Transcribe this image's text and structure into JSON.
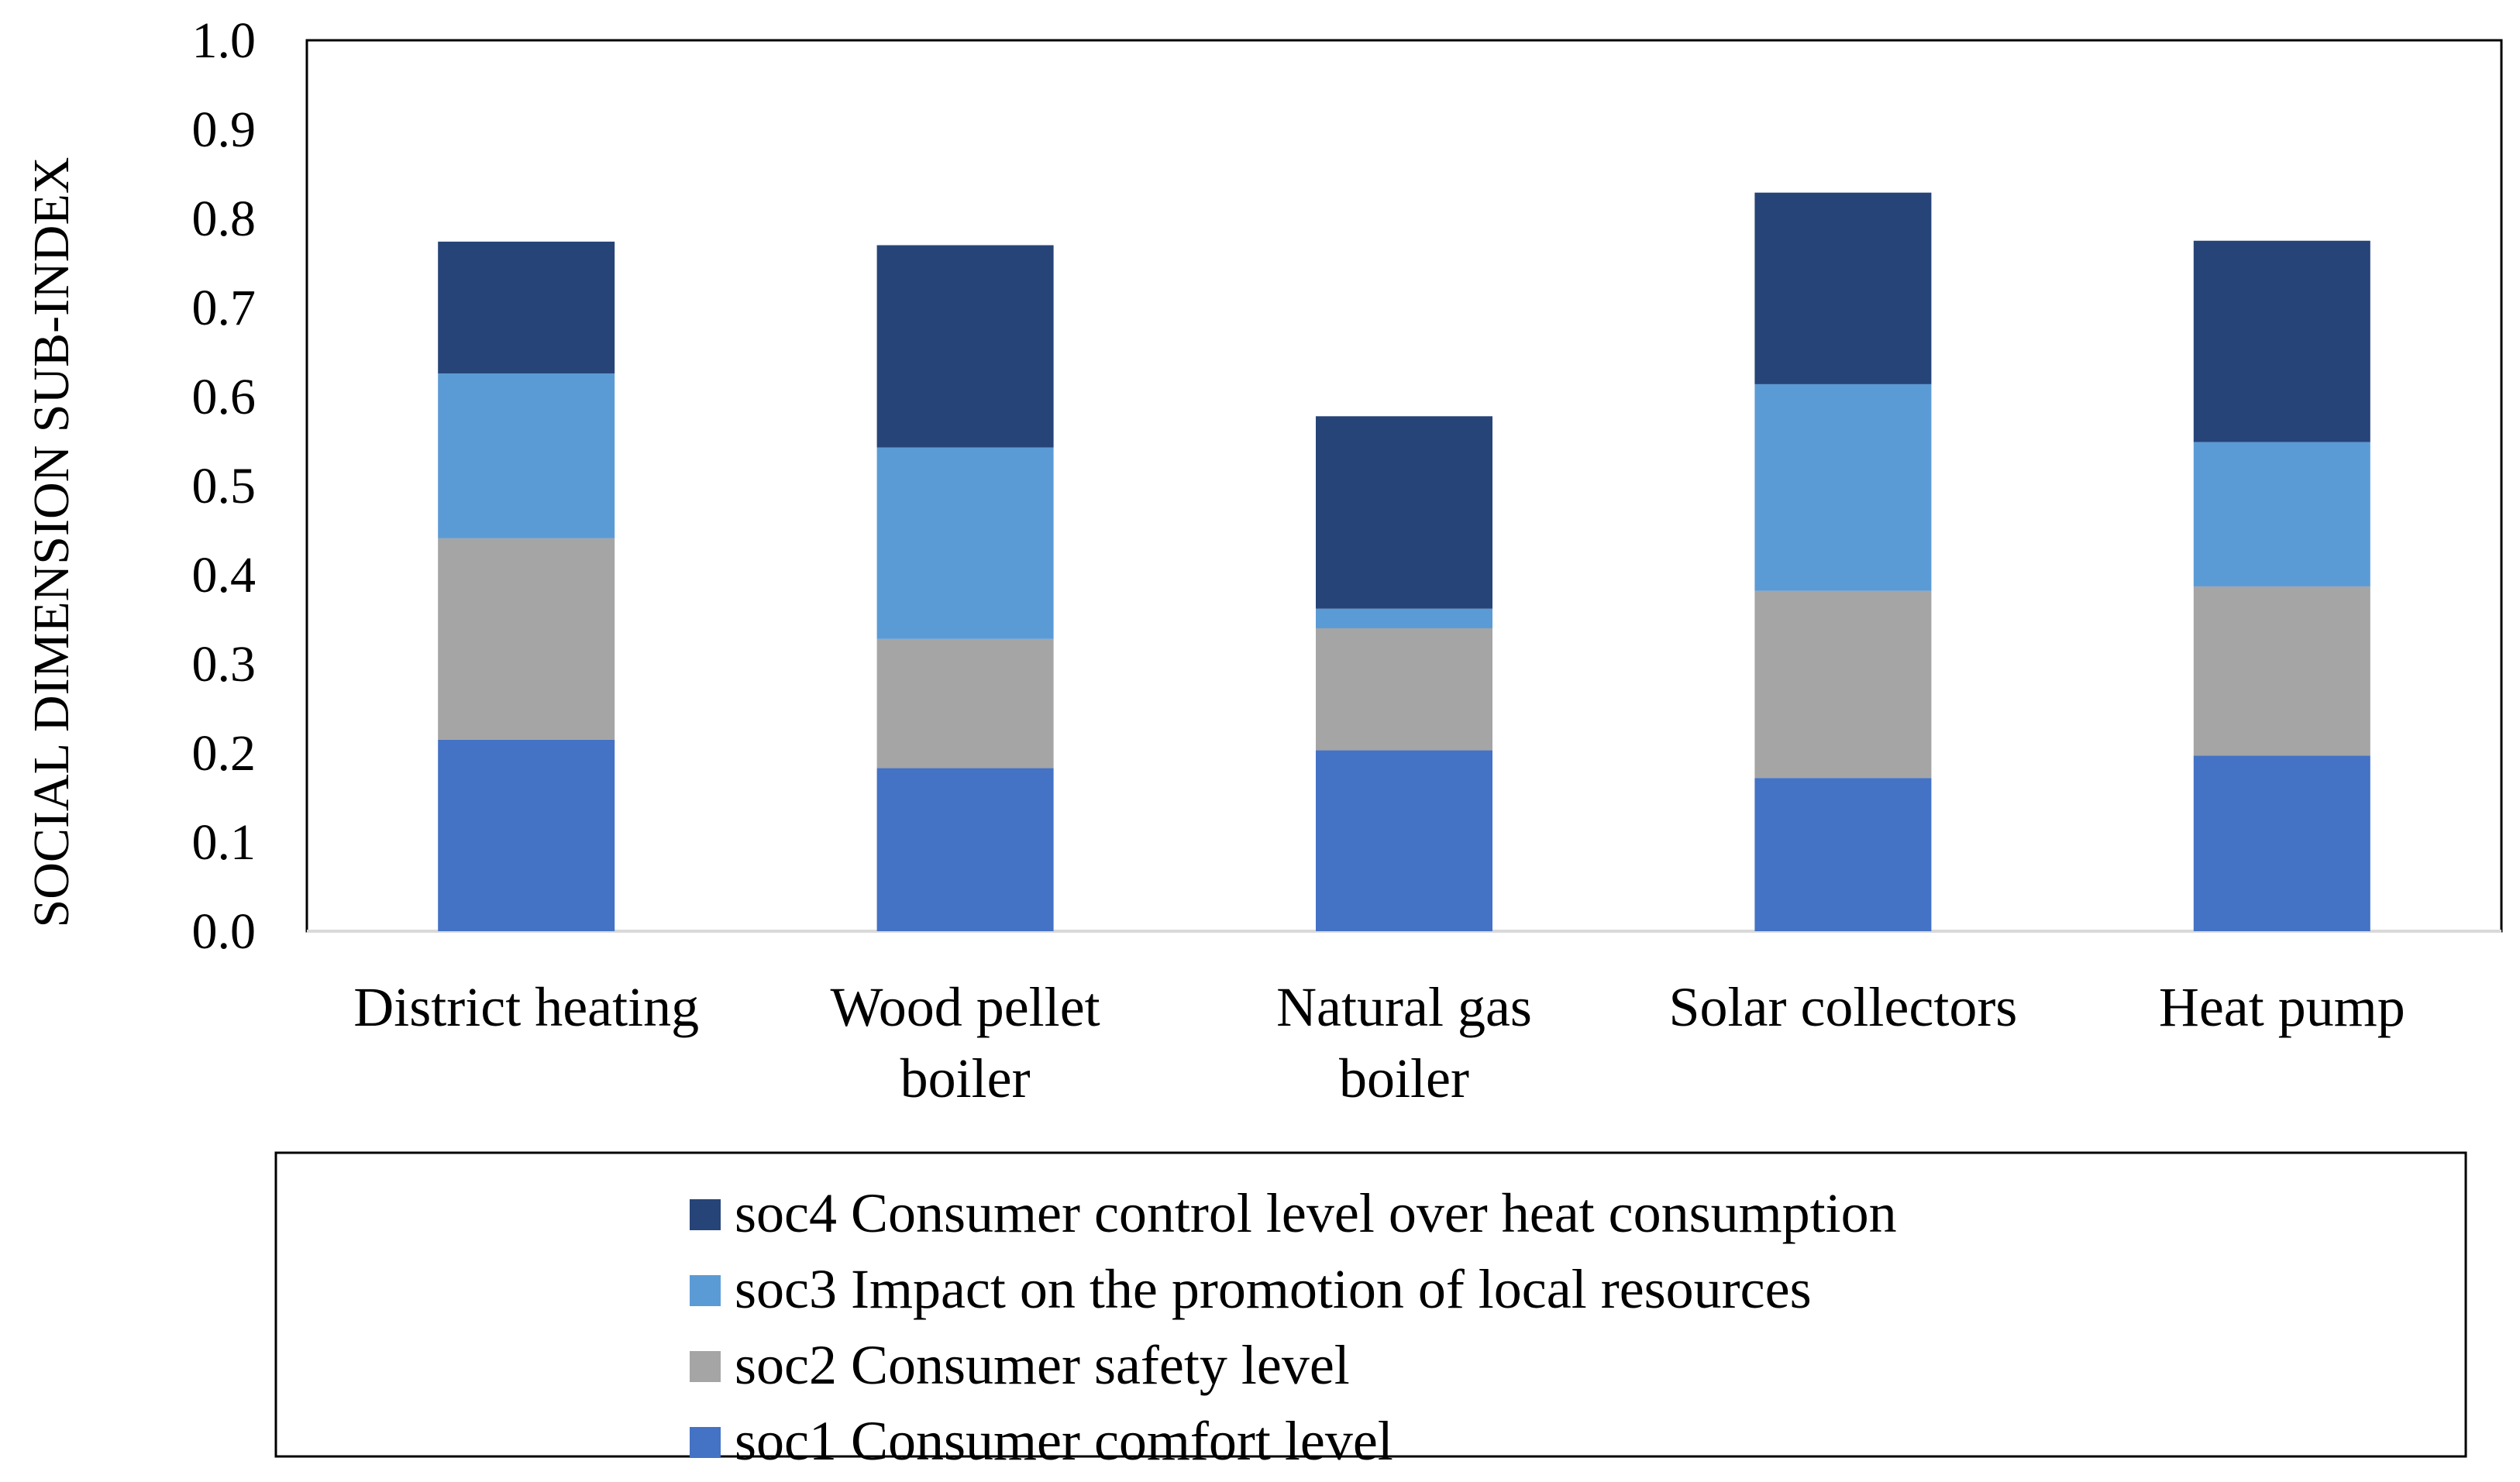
{
  "chart_data": {
    "type": "bar",
    "stacked": true,
    "title": "",
    "xlabel": "",
    "ylabel": "SOCIAL DIMENSION SUB-INDEX",
    "ylim": [
      0,
      1.0
    ],
    "yticks": [
      "0.0",
      "0.1",
      "0.2",
      "0.3",
      "0.4",
      "0.5",
      "0.6",
      "0.7",
      "0.8",
      "0.9",
      "1.0"
    ],
    "grid": false,
    "legend_position": "bottom",
    "categories": [
      [
        "District heating"
      ],
      [
        "Wood pellet",
        "boiler"
      ],
      [
        "Natural gas",
        "boiler"
      ],
      [
        "Solar collectors"
      ],
      [
        "Heat pump"
      ]
    ],
    "series": [
      {
        "name": "soc1 Consumer comfort level",
        "color": "#4472C4",
        "values": [
          0.215,
          0.183,
          0.203,
          0.172,
          0.197
        ]
      },
      {
        "name": "soc2 Consumer safety level",
        "color": "#A5A5A5",
        "values": [
          0.226,
          0.145,
          0.137,
          0.21,
          0.19
        ]
      },
      {
        "name": "soc3 Impact on the promotion of local resources",
        "color": "#5B9BD5",
        "values": [
          0.185,
          0.215,
          0.022,
          0.232,
          0.162
        ]
      },
      {
        "name": "soc4 Consumer control level over heat consumption",
        "color": "#264478",
        "values": [
          0.148,
          0.227,
          0.216,
          0.215,
          0.226
        ]
      }
    ],
    "legend_order": [
      3,
      2,
      1,
      0
    ]
  }
}
